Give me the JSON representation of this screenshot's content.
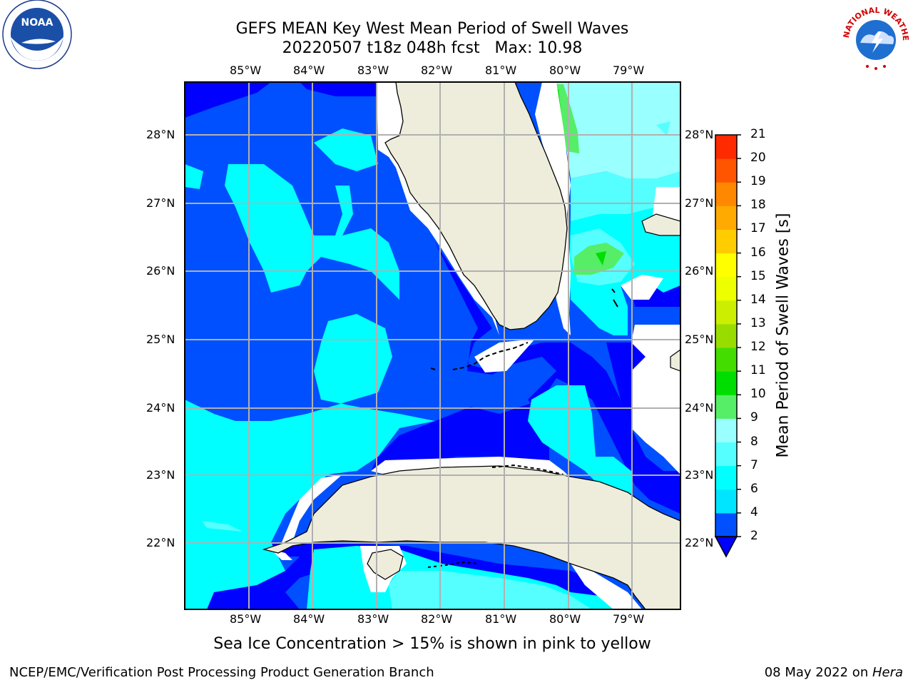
{
  "title": {
    "line1": "GEFS MEAN Key West Mean Period of Swell Waves",
    "line2": "20220507 t18z 048h fcst   Max: 10.98"
  },
  "lon_labels": [
    "85°W",
    "84°W",
    "83°W",
    "82°W",
    "81°W",
    "80°W",
    "79°W"
  ],
  "lat_labels": [
    "28°N",
    "27°N",
    "26°N",
    "25°N",
    "24°N",
    "23°N",
    "22°N"
  ],
  "colorbar": {
    "label": "Mean Period of Swell Waves [s]",
    "ticks": [
      "2",
      "4",
      "6",
      "7",
      "8",
      "9",
      "10",
      "11",
      "12",
      "13",
      "14",
      "15",
      "16",
      "17",
      "18",
      "19",
      "20",
      "21"
    ],
    "colors": [
      "#0050ff",
      "#00e5ff",
      "#00ffff",
      "#55ffff",
      "#99ffff",
      "#55ee66",
      "#00dd00",
      "#44dd00",
      "#99dd00",
      "#ccee00",
      "#eeff00",
      "#ffff00",
      "#ffcc00",
      "#ffaa00",
      "#ff8800",
      "#ff5500",
      "#ff2a00",
      "#ff0000"
    ],
    "under_color": "#0000ff"
  },
  "note": "Sea Ice Concentration > 15% is shown in pink to yellow",
  "footer": {
    "left": "NCEP/EMC/Verification Post Processing Product Generation Branch",
    "date": "08 May 2022 on ",
    "machine": "Hera"
  },
  "logos": {
    "noaa": "NOAA",
    "nws": "NATIONAL WEATHER SERVICE"
  }
}
